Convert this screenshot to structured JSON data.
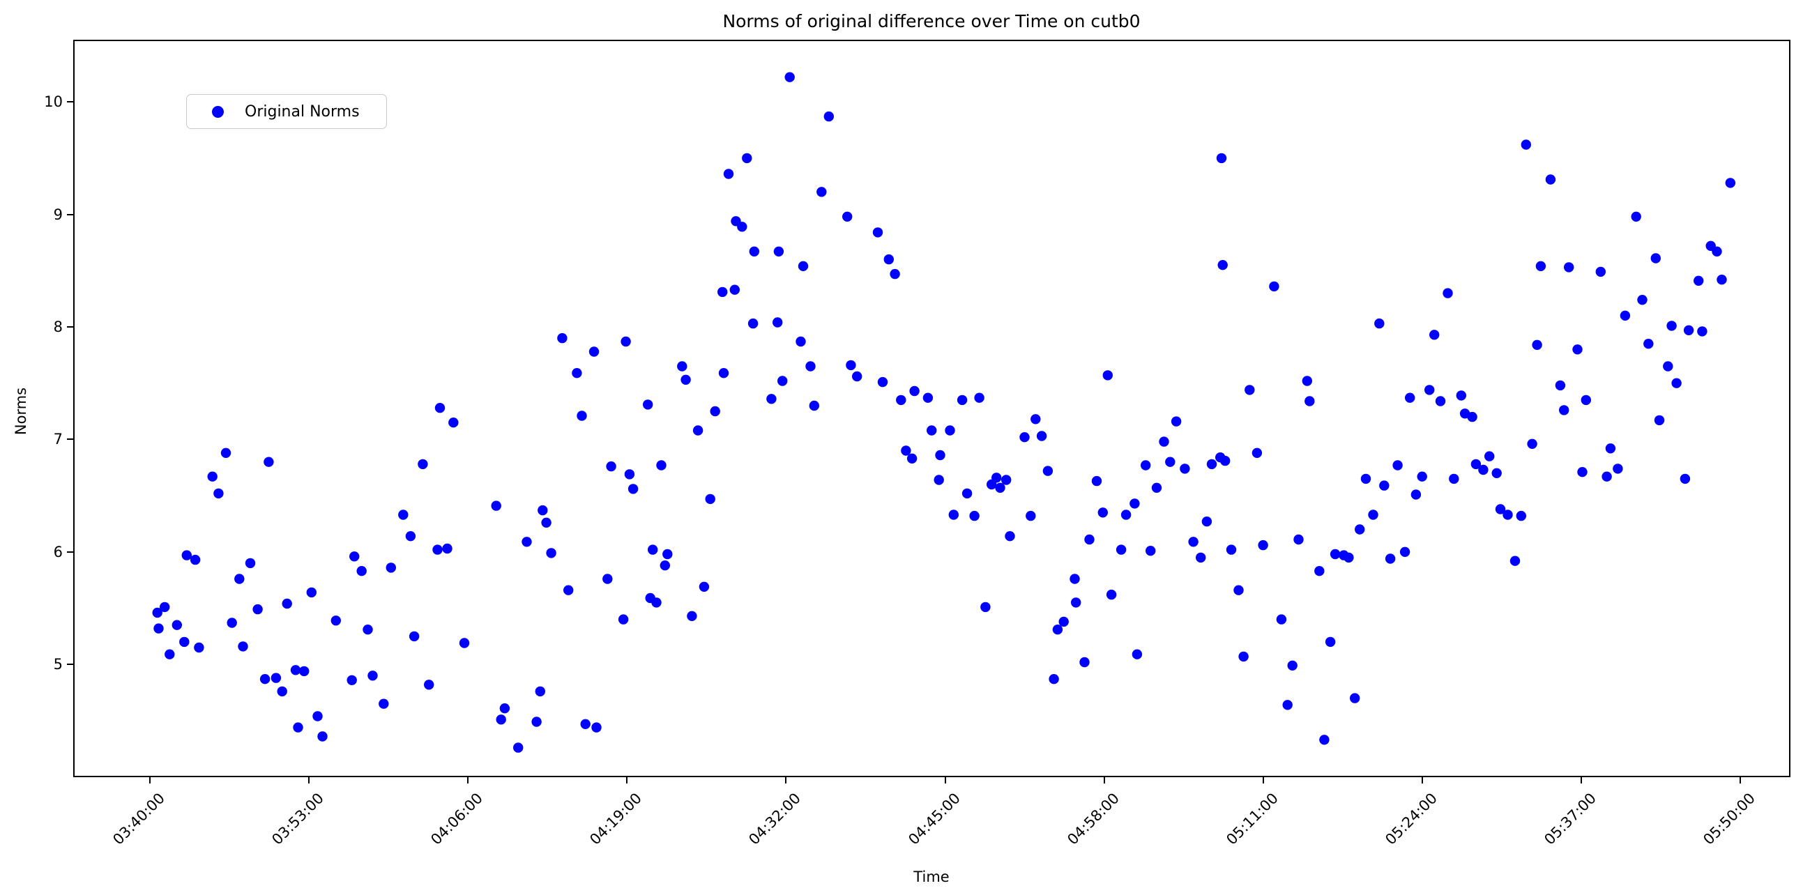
{
  "accent_color": "#0000FF",
  "chart_data": {
    "type": "scatter",
    "title": "Norms of original difference over Time on cutb0",
    "xlabel": "Time",
    "ylabel": "Norms",
    "grid": false,
    "legend_position": "upper left",
    "marker_color": "#0000FF",
    "x_ticks": [
      "03:40:00",
      "03:53:00",
      "04:06:00",
      "04:19:00",
      "04:32:00",
      "04:45:00",
      "04:58:00",
      "05:11:00",
      "05:24:00",
      "05:37:00",
      "05:50:00"
    ],
    "y_ticks": [
      5,
      6,
      7,
      8,
      9,
      10
    ],
    "xlim": [
      "03:33:50",
      "05:54:00"
    ],
    "ylim": [
      4.01,
      10.54
    ],
    "series": [
      {
        "name": "Original Norms",
        "color": "#0000FF",
        "points": [
          [
            "03:40:36",
            5.46
          ],
          [
            "03:40:42",
            5.32
          ],
          [
            "03:41:12",
            5.51
          ],
          [
            "03:41:36",
            5.09
          ],
          [
            "03:42:12",
            5.35
          ],
          [
            "03:42:48",
            5.2
          ],
          [
            "03:43:00",
            5.97
          ],
          [
            "03:43:42",
            5.93
          ],
          [
            "03:44:00",
            5.15
          ],
          [
            "03:45:06",
            6.67
          ],
          [
            "03:45:36",
            6.52
          ],
          [
            "03:46:12",
            6.88
          ],
          [
            "03:46:42",
            5.37
          ],
          [
            "03:47:18",
            5.76
          ],
          [
            "03:47:36",
            5.16
          ],
          [
            "03:48:12",
            5.9
          ],
          [
            "03:48:48",
            5.49
          ],
          [
            "03:49:24",
            4.87
          ],
          [
            "03:49:42",
            6.8
          ],
          [
            "03:50:18",
            4.88
          ],
          [
            "03:50:48",
            4.76
          ],
          [
            "03:51:12",
            5.54
          ],
          [
            "03:51:54",
            4.95
          ],
          [
            "03:52:06",
            4.44
          ],
          [
            "03:52:36",
            4.94
          ],
          [
            "03:53:12",
            5.64
          ],
          [
            "03:53:42",
            4.54
          ],
          [
            "03:54:06",
            4.36
          ],
          [
            "03:55:12",
            5.39
          ],
          [
            "03:56:30",
            4.86
          ],
          [
            "03:56:42",
            5.96
          ],
          [
            "03:57:18",
            5.83
          ],
          [
            "03:57:48",
            5.31
          ],
          [
            "03:58:12",
            4.9
          ],
          [
            "03:59:06",
            4.65
          ],
          [
            "03:59:42",
            5.86
          ],
          [
            "04:00:42",
            6.33
          ],
          [
            "04:01:18",
            6.14
          ],
          [
            "04:01:36",
            5.25
          ],
          [
            "04:02:18",
            6.78
          ],
          [
            "04:02:48",
            4.82
          ],
          [
            "04:03:30",
            6.02
          ],
          [
            "04:03:42",
            7.28
          ],
          [
            "04:04:18",
            6.03
          ],
          [
            "04:04:48",
            7.15
          ],
          [
            "04:05:42",
            5.19
          ],
          [
            "04:08:18",
            6.41
          ],
          [
            "04:08:42",
            4.51
          ],
          [
            "04:09:00",
            4.61
          ],
          [
            "04:10:06",
            4.26
          ],
          [
            "04:10:48",
            6.09
          ],
          [
            "04:11:36",
            4.49
          ],
          [
            "04:11:54",
            4.76
          ],
          [
            "04:12:06",
            6.37
          ],
          [
            "04:12:24",
            6.26
          ],
          [
            "04:12:48",
            5.99
          ],
          [
            "04:13:42",
            7.9
          ],
          [
            "04:14:12",
            5.66
          ],
          [
            "04:14:54",
            7.59
          ],
          [
            "04:15:18",
            7.21
          ],
          [
            "04:15:36",
            4.47
          ],
          [
            "04:16:18",
            7.78
          ],
          [
            "04:16:30",
            4.44
          ],
          [
            "04:17:24",
            5.76
          ],
          [
            "04:17:42",
            6.76
          ],
          [
            "04:18:42",
            5.4
          ],
          [
            "04:18:54",
            7.87
          ],
          [
            "04:19:12",
            6.69
          ],
          [
            "04:19:30",
            6.56
          ],
          [
            "04:20:42",
            7.31
          ],
          [
            "04:20:54",
            5.59
          ],
          [
            "04:21:06",
            6.02
          ],
          [
            "04:21:24",
            5.55
          ],
          [
            "04:21:48",
            6.77
          ],
          [
            "04:22:06",
            5.88
          ],
          [
            "04:22:18",
            5.98
          ],
          [
            "04:23:30",
            7.65
          ],
          [
            "04:23:48",
            7.53
          ],
          [
            "04:24:18",
            5.43
          ],
          [
            "04:24:48",
            7.08
          ],
          [
            "04:25:18",
            5.69
          ],
          [
            "04:25:48",
            6.47
          ],
          [
            "04:26:12",
            7.25
          ],
          [
            "04:26:48",
            8.31
          ],
          [
            "04:26:54",
            7.59
          ],
          [
            "04:27:18",
            9.36
          ],
          [
            "04:27:48",
            8.33
          ],
          [
            "04:27:54",
            8.94
          ],
          [
            "04:28:24",
            8.89
          ],
          [
            "04:28:48",
            9.5
          ],
          [
            "04:29:18",
            8.03
          ],
          [
            "04:29:24",
            8.67
          ],
          [
            "04:30:48",
            7.36
          ],
          [
            "04:31:18",
            8.04
          ],
          [
            "04:31:24",
            8.67
          ],
          [
            "04:31:42",
            7.52
          ],
          [
            "04:32:18",
            10.22
          ],
          [
            "04:33:12",
            7.87
          ],
          [
            "04:33:24",
            8.54
          ],
          [
            "04:34:00",
            7.65
          ],
          [
            "04:34:18",
            7.3
          ],
          [
            "04:34:54",
            9.2
          ],
          [
            "04:35:30",
            9.87
          ],
          [
            "04:37:00",
            8.98
          ],
          [
            "04:37:18",
            7.66
          ],
          [
            "04:37:48",
            7.56
          ],
          [
            "04:39:30",
            8.84
          ],
          [
            "04:39:54",
            7.51
          ],
          [
            "04:40:24",
            8.6
          ],
          [
            "04:40:54",
            8.47
          ],
          [
            "04:41:24",
            7.35
          ],
          [
            "04:41:48",
            6.9
          ],
          [
            "04:42:18",
            6.83
          ],
          [
            "04:42:30",
            7.43
          ],
          [
            "04:43:36",
            7.37
          ],
          [
            "04:43:54",
            7.08
          ],
          [
            "04:44:30",
            6.64
          ],
          [
            "04:44:36",
            6.86
          ],
          [
            "04:45:24",
            7.08
          ],
          [
            "04:45:42",
            6.33
          ],
          [
            "04:46:24",
            7.35
          ],
          [
            "04:46:48",
            6.52
          ],
          [
            "04:47:24",
            6.32
          ],
          [
            "04:47:48",
            7.37
          ],
          [
            "04:48:18",
            5.51
          ],
          [
            "04:48:48",
            6.6
          ],
          [
            "04:49:12",
            6.66
          ],
          [
            "04:49:30",
            6.57
          ],
          [
            "04:50:00",
            6.64
          ],
          [
            "04:50:18",
            6.14
          ],
          [
            "04:51:30",
            7.02
          ],
          [
            "04:52:00",
            6.32
          ],
          [
            "04:52:24",
            7.18
          ],
          [
            "04:52:54",
            7.03
          ],
          [
            "04:53:24",
            6.72
          ],
          [
            "04:53:54",
            4.87
          ],
          [
            "04:54:12",
            5.31
          ],
          [
            "04:54:42",
            5.38
          ],
          [
            "04:55:36",
            5.76
          ],
          [
            "04:55:42",
            5.55
          ],
          [
            "04:56:24",
            5.02
          ],
          [
            "04:56:48",
            6.11
          ],
          [
            "04:57:24",
            6.63
          ],
          [
            "04:57:54",
            6.35
          ],
          [
            "04:58:18",
            7.57
          ],
          [
            "04:58:36",
            5.62
          ],
          [
            "04:59:24",
            6.02
          ],
          [
            "04:59:48",
            6.33
          ],
          [
            "05:00:30",
            6.43
          ],
          [
            "05:00:42",
            5.09
          ],
          [
            "05:01:24",
            6.77
          ],
          [
            "05:01:48",
            6.01
          ],
          [
            "05:02:18",
            6.57
          ],
          [
            "05:02:54",
            6.98
          ],
          [
            "05:03:24",
            6.8
          ],
          [
            "05:03:54",
            7.16
          ],
          [
            "05:04:36",
            6.74
          ],
          [
            "05:05:18",
            6.09
          ],
          [
            "05:05:54",
            5.95
          ],
          [
            "05:06:24",
            6.27
          ],
          [
            "05:06:48",
            6.78
          ],
          [
            "05:07:30",
            6.84
          ],
          [
            "05:07:36",
            9.5
          ],
          [
            "05:07:42",
            8.55
          ],
          [
            "05:07:54",
            6.81
          ],
          [
            "05:08:24",
            6.02
          ],
          [
            "05:09:00",
            5.66
          ],
          [
            "05:09:24",
            5.07
          ],
          [
            "05:09:54",
            7.44
          ],
          [
            "05:10:30",
            6.88
          ],
          [
            "05:11:00",
            6.06
          ],
          [
            "05:11:54",
            8.36
          ],
          [
            "05:12:30",
            5.4
          ],
          [
            "05:13:00",
            4.64
          ],
          [
            "05:13:24",
            4.99
          ],
          [
            "05:13:54",
            6.11
          ],
          [
            "05:14:36",
            7.52
          ],
          [
            "05:14:48",
            7.34
          ],
          [
            "05:15:36",
            5.83
          ],
          [
            "05:16:00",
            4.33
          ],
          [
            "05:16:30",
            5.2
          ],
          [
            "05:16:54",
            5.98
          ],
          [
            "05:17:36",
            5.97
          ],
          [
            "05:18:00",
            5.95
          ],
          [
            "05:18:30",
            4.7
          ],
          [
            "05:18:54",
            6.2
          ],
          [
            "05:19:24",
            6.65
          ],
          [
            "05:20:00",
            6.33
          ],
          [
            "05:20:30",
            8.03
          ],
          [
            "05:20:54",
            6.59
          ],
          [
            "05:21:24",
            5.94
          ],
          [
            "05:22:00",
            6.77
          ],
          [
            "05:22:36",
            6.0
          ],
          [
            "05:23:00",
            7.37
          ],
          [
            "05:23:30",
            6.51
          ],
          [
            "05:24:00",
            6.67
          ],
          [
            "05:24:36",
            7.44
          ],
          [
            "05:25:00",
            7.93
          ],
          [
            "05:25:30",
            7.34
          ],
          [
            "05:26:06",
            8.3
          ],
          [
            "05:26:36",
            6.65
          ],
          [
            "05:27:12",
            7.39
          ],
          [
            "05:27:30",
            7.23
          ],
          [
            "05:28:06",
            7.2
          ],
          [
            "05:28:24",
            6.78
          ],
          [
            "05:29:00",
            6.73
          ],
          [
            "05:29:30",
            6.85
          ],
          [
            "05:30:06",
            6.7
          ],
          [
            "05:30:24",
            6.38
          ],
          [
            "05:31:00",
            6.33
          ],
          [
            "05:31:36",
            5.92
          ],
          [
            "05:32:06",
            6.32
          ],
          [
            "05:32:30",
            9.62
          ],
          [
            "05:33:00",
            6.96
          ],
          [
            "05:33:24",
            7.84
          ],
          [
            "05:33:42",
            8.54
          ],
          [
            "05:34:30",
            9.31
          ],
          [
            "05:35:18",
            7.48
          ],
          [
            "05:35:36",
            7.26
          ],
          [
            "05:36:00",
            8.53
          ],
          [
            "05:36:42",
            7.8
          ],
          [
            "05:37:06",
            6.71
          ],
          [
            "05:37:24",
            7.35
          ],
          [
            "05:38:36",
            8.49
          ],
          [
            "05:39:06",
            6.67
          ],
          [
            "05:39:24",
            6.92
          ],
          [
            "05:40:00",
            6.74
          ],
          [
            "05:40:36",
            8.1
          ],
          [
            "05:41:30",
            8.98
          ],
          [
            "05:42:00",
            8.24
          ],
          [
            "05:42:30",
            7.85
          ],
          [
            "05:43:06",
            8.61
          ],
          [
            "05:43:24",
            7.17
          ],
          [
            "05:44:06",
            7.65
          ],
          [
            "05:44:24",
            8.01
          ],
          [
            "05:44:48",
            7.5
          ],
          [
            "05:45:30",
            6.65
          ],
          [
            "05:45:48",
            7.97
          ],
          [
            "05:46:36",
            8.41
          ],
          [
            "05:46:54",
            7.96
          ],
          [
            "05:47:36",
            8.72
          ],
          [
            "05:48:06",
            8.67
          ],
          [
            "05:48:30",
            8.42
          ],
          [
            "05:49:12",
            9.28
          ]
        ]
      }
    ]
  }
}
